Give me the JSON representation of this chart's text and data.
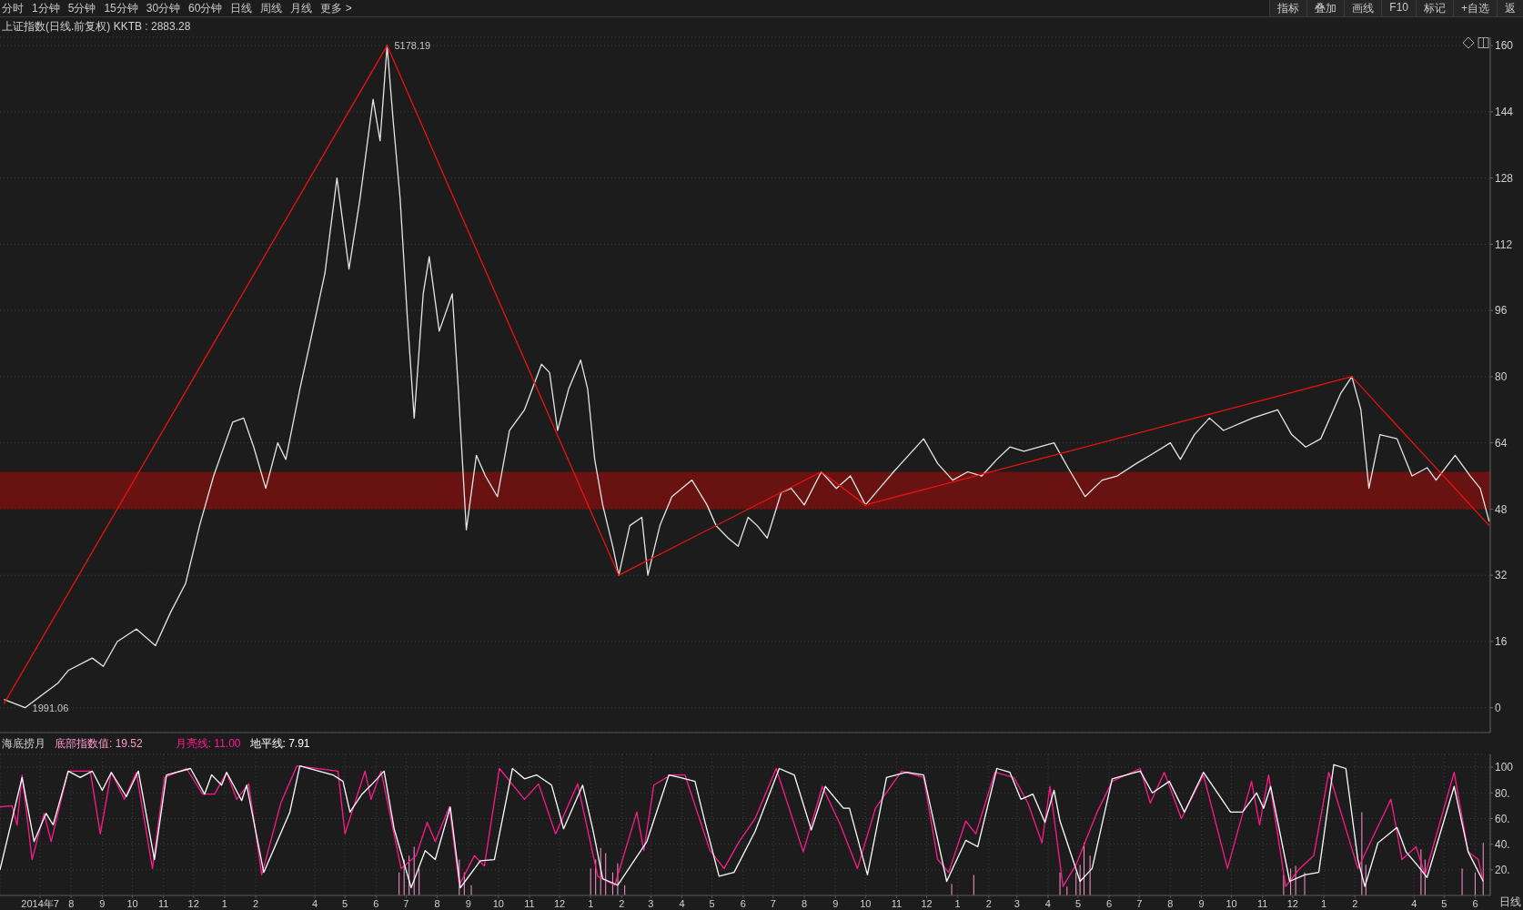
{
  "chart_data": [
    {
      "type": "line",
      "title": "上证指数(日线.前复权) KKTB : 2883.28",
      "annotations": [
        "分时",
        "1分钟",
        "5分钟",
        "15分钟",
        "30分钟",
        "60分钟",
        "日线",
        "周线",
        "月线",
        "更多 >",
        "指标",
        "叠加",
        "画线",
        "F10",
        "标记",
        "+自选",
        "返",
        {
          "text": "5178.19",
          "x": "2015-06-12",
          "y": 160
        },
        {
          "text": "1991.06",
          "x": "2014-06-16",
          "y": 0
        }
      ],
      "xlim": [
        "2014-05-22",
        "2018-06-16"
      ],
      "ylim": [
        -6,
        162
      ],
      "yticks": [
        0,
        16,
        32,
        48,
        64,
        80,
        96,
        112,
        128,
        144,
        160
      ],
      "grid": "y",
      "tick_labels": "y",
      "bands": [
        {
          "axis": "y",
          "from": 48,
          "to": 57,
          "color": "#6e1212"
        }
      ],
      "series": [
        {
          "color": "#e6e6e6",
          "x": [
            "2014-05-26",
            "2014-06-16",
            "2014-07-19",
            "2014-07-29",
            "2014-08-22",
            "2014-09-02",
            "2014-09-16",
            "2014-10-05",
            "2014-10-24",
            "2014-11-08",
            "2014-11-23",
            "2014-12-07",
            "2014-12-21",
            "2015-01-09",
            "2015-01-20",
            "2015-01-30",
            "2015-02-11",
            "2015-02-23",
            "2015-03-03",
            "2015-03-17",
            "2015-03-27",
            "2015-04-11",
            "2015-04-23",
            "2015-05-05",
            "2015-05-16",
            "2015-05-29",
            "2015-06-05",
            "2015-06-12",
            "2015-06-18",
            "2015-06-25",
            "2015-07-02",
            "2015-07-09",
            "2015-07-18",
            "2015-07-24",
            "2015-08-03",
            "2015-08-16",
            "2015-08-22",
            "2015-08-30",
            "2015-09-09",
            "2015-09-18",
            "2015-09-30",
            "2015-10-12",
            "2015-10-27",
            "2015-11-13",
            "2015-11-21",
            "2015-11-29",
            "2015-12-10",
            "2015-12-22",
            "2015-12-29",
            "2016-01-05",
            "2016-01-13",
            "2016-01-23",
            "2016-01-29",
            "2016-02-09",
            "2016-02-21",
            "2016-02-27",
            "2016-03-10",
            "2016-03-22",
            "2016-04-11",
            "2016-04-26",
            "2016-05-05",
            "2016-05-17",
            "2016-05-27",
            "2016-06-06",
            "2016-06-15",
            "2016-06-25",
            "2016-07-09",
            "2016-07-19",
            "2016-08-01",
            "2016-08-18",
            "2016-09-02",
            "2016-09-16",
            "2016-10-01",
            "2016-10-15",
            "2016-10-29",
            "2016-11-28",
            "2016-12-12",
            "2016-12-27",
            "2017-01-11",
            "2017-01-25",
            "2017-02-09",
            "2017-02-22",
            "2017-03-08",
            "2017-04-07",
            "2017-04-21",
            "2017-05-08",
            "2017-05-25",
            "2017-06-09",
            "2017-06-28",
            "2017-07-12",
            "2017-08-01",
            "2017-08-11",
            "2017-08-25",
            "2017-09-09",
            "2017-09-23",
            "2017-10-22",
            "2017-11-16",
            "2017-11-30",
            "2017-12-14",
            "2017-12-29",
            "2018-01-18",
            "2018-01-29",
            "2018-02-07",
            "2018-02-15",
            "2018-02-26",
            "2018-03-15",
            "2018-03-30",
            "2018-04-14",
            "2018-04-23",
            "2018-05-12",
            "2018-05-27",
            "2018-06-06",
            "2018-06-15"
          ],
          "values": [
            2,
            0,
            6,
            9,
            12,
            10,
            16,
            19,
            15,
            23,
            30,
            44,
            56,
            69,
            70,
            63,
            53,
            64,
            60,
            77,
            88,
            105,
            128,
            106,
            123,
            147,
            137,
            160,
            142,
            123,
            95,
            70,
            100,
            109,
            91,
            100,
            77,
            43,
            61,
            56,
            51,
            67,
            72,
            83,
            81,
            67,
            77,
            84,
            77,
            60,
            49,
            39,
            32,
            44,
            46,
            32,
            44,
            51,
            55,
            49,
            44,
            41,
            39,
            46,
            44,
            41,
            52,
            53,
            49,
            57,
            53,
            56,
            49,
            53,
            57,
            65,
            59,
            55,
            57,
            56,
            60,
            63,
            62,
            64,
            58,
            51,
            55,
            56,
            59,
            61,
            64,
            60,
            66,
            70,
            67,
            70,
            72,
            66,
            63,
            65,
            76,
            80,
            72,
            53,
            66,
            65,
            56,
            58,
            55,
            61,
            56,
            53,
            45
          ]
        },
        {
          "color": "#ee1111",
          "x": [
            "2014-05-26",
            "2015-06-12",
            "2016-01-29",
            "2016-08-18",
            "2016-10-01",
            "2018-01-29",
            "2018-06-15"
          ],
          "values": [
            1,
            160,
            32,
            57,
            49,
            80,
            44
          ]
        }
      ]
    },
    {
      "type": "line",
      "title": "海底捞月",
      "legend": "top left",
      "annotations": [
        ": 19.52",
        ": 11.00",
        ": 7.91",
        "日线"
      ],
      "xlim": [
        "2014-05-22",
        "2018-06-16"
      ],
      "xticks": [
        {
          "value": "2014-07-01",
          "label": "2014年7"
        },
        {
          "value": "2014-08-01",
          "label": "8"
        },
        {
          "value": "2014-09-01",
          "label": "9"
        },
        {
          "value": "2014-10-01",
          "label": "10"
        },
        {
          "value": "2014-11-01",
          "label": "11"
        },
        {
          "value": "2014-12-01",
          "label": "12"
        },
        {
          "value": "2015-01-01",
          "label": "1"
        },
        {
          "value": "2015-02-01",
          "label": "2"
        },
        {
          "value": "2015-04-01",
          "label": "4"
        },
        {
          "value": "2015-05-01",
          "label": "5"
        },
        {
          "value": "2015-06-01",
          "label": "6"
        },
        {
          "value": "2015-07-01",
          "label": "7"
        },
        {
          "value": "2015-08-01",
          "label": "8"
        },
        {
          "value": "2015-09-01",
          "label": "9"
        },
        {
          "value": "2015-10-01",
          "label": "10"
        },
        {
          "value": "2015-11-01",
          "label": "11"
        },
        {
          "value": "2015-12-01",
          "label": "12"
        },
        {
          "value": "2016-01-01",
          "label": "1"
        },
        {
          "value": "2016-02-01",
          "label": "2"
        },
        {
          "value": "2016-03-01",
          "label": "3"
        },
        {
          "value": "2016-04-01",
          "label": "4"
        },
        {
          "value": "2016-05-01",
          "label": "5"
        },
        {
          "value": "2016-06-01",
          "label": "6"
        },
        {
          "value": "2016-07-01",
          "label": "7"
        },
        {
          "value": "2016-08-01",
          "label": "8"
        },
        {
          "value": "2016-09-01",
          "label": "9"
        },
        {
          "value": "2016-10-01",
          "label": "10"
        },
        {
          "value": "2016-11-01",
          "label": "11"
        },
        {
          "value": "2016-12-01",
          "label": "12"
        },
        {
          "value": "2017-01-01",
          "label": "1"
        },
        {
          "value": "2017-02-01",
          "label": "2"
        },
        {
          "value": "2017-03-01",
          "label": "3"
        },
        {
          "value": "2017-04-01",
          "label": "4"
        },
        {
          "value": "2017-05-01",
          "label": "5"
        },
        {
          "value": "2017-06-01",
          "label": "6"
        },
        {
          "value": "2017-07-01",
          "label": "7"
        },
        {
          "value": "2017-08-01",
          "label": "8"
        },
        {
          "value": "2017-09-01",
          "label": "9"
        },
        {
          "value": "2017-10-01",
          "label": "10"
        },
        {
          "value": "2017-11-01",
          "label": "11"
        },
        {
          "value": "2017-12-01",
          "label": "12"
        },
        {
          "value": "2018-01-01",
          "label": "1"
        },
        {
          "value": "2018-02-01",
          "label": "2"
        },
        {
          "value": "2018-04-01",
          "label": "4"
        },
        {
          "value": "2018-05-01",
          "label": "5"
        },
        {
          "value": "2018-06-01",
          "label": "6"
        }
      ],
      "ylim": [
        0,
        110
      ],
      "yticks": [
        {
          "value": 20,
          "label": "20."
        },
        {
          "value": 40,
          "label": "40."
        },
        {
          "value": 60,
          "label": "60."
        },
        {
          "value": 80,
          "label": "80."
        },
        {
          "value": 100,
          "label": "100"
        }
      ],
      "grid": true,
      "series": [
        {
          "name": "底部指数值",
          "type": "bar",
          "color": "#ff99cc",
          "x": [
            "2015-06-24",
            "2015-06-29",
            "2015-07-04",
            "2015-07-09",
            "2015-07-14",
            "2015-08-23",
            "2015-08-28",
            "2015-09-04",
            "2016-01-01",
            "2016-01-06",
            "2016-01-11",
            "2016-01-16",
            "2016-01-23",
            "2016-01-28",
            "2016-02-04",
            "2016-12-26",
            "2017-01-17",
            "2017-04-13",
            "2017-04-20",
            "2017-04-29",
            "2017-05-03",
            "2017-05-07",
            "2017-05-13",
            "2017-11-22",
            "2017-11-29",
            "2017-12-04",
            "2017-12-13",
            "2018-02-08",
            "2018-02-12",
            "2018-04-08",
            "2018-04-12",
            "2018-05-19",
            "2018-06-01",
            "2018-06-09"
          ],
          "values": [
            18,
            28,
            31,
            38,
            21,
            28,
            18,
            8,
            21,
            28,
            37,
            33,
            18,
            25,
            8,
            9,
            16,
            18,
            7,
            18,
            24,
            41,
            31,
            16,
            21,
            23,
            18,
            65,
            24,
            36,
            28,
            21,
            18,
            41
          ]
        },
        {
          "name": "月亮线",
          "color": "#ff1a8c",
          "x": [
            "2014-05-22",
            "2014-06-03",
            "2014-06-08",
            "2014-06-13",
            "2014-06-23",
            "2014-07-05",
            "2014-07-12",
            "2014-07-29",
            "2014-08-20",
            "2014-08-30",
            "2014-09-10",
            "2014-09-23",
            "2014-10-05",
            "2014-10-21",
            "2014-11-02",
            "2014-11-24",
            "2014-12-10",
            "2014-12-22",
            "2015-01-03",
            "2015-01-13",
            "2015-01-25",
            "2015-02-07",
            "2015-02-26",
            "2015-03-14",
            "2015-04-24",
            "2015-05-01",
            "2015-05-21",
            "2015-05-27",
            "2015-06-06",
            "2015-06-26",
            "2015-07-11",
            "2015-07-22",
            "2015-07-30",
            "2015-08-13",
            "2015-08-23",
            "2015-09-07",
            "2015-09-17",
            "2015-10-02",
            "2015-10-27",
            "2015-11-10",
            "2015-11-27",
            "2015-12-19",
            "2016-01-08",
            "2016-01-25",
            "2016-02-16",
            "2016-02-23",
            "2016-03-04",
            "2016-03-21",
            "2016-04-04",
            "2016-04-29",
            "2016-05-13",
            "2016-05-28",
            "2016-06-13",
            "2016-07-04",
            "2016-07-31",
            "2016-08-19",
            "2016-09-06",
            "2016-09-23",
            "2016-10-11",
            "2016-11-06",
            "2016-11-28",
            "2016-12-12",
            "2016-12-23",
            "2017-01-09",
            "2017-01-19",
            "2017-02-07",
            "2017-02-26",
            "2017-03-12",
            "2017-03-26",
            "2017-04-03",
            "2017-04-16",
            "2017-04-29",
            "2017-05-20",
            "2017-06-04",
            "2017-07-02",
            "2017-07-12",
            "2017-07-26",
            "2017-08-12",
            "2017-09-03",
            "2017-09-27",
            "2017-10-21",
            "2017-10-29",
            "2017-11-07",
            "2017-11-24",
            "2017-12-08",
            "2017-12-22",
            "2018-01-06",
            "2018-02-04",
            "2018-03-09",
            "2018-03-20",
            "2018-04-03",
            "2018-04-12",
            "2018-05-11",
            "2018-05-25",
            "2018-06-04",
            "2018-06-09"
          ],
          "values": [
            69,
            70,
            55,
            94,
            28,
            64,
            42,
            97,
            97,
            48,
            96,
            75,
            96,
            21,
            92,
            99,
            79,
            79,
            96,
            75,
            87,
            16,
            72,
            101,
            97,
            48,
            97,
            75,
            97,
            21,
            31,
            57,
            42,
            69,
            8,
            31,
            23,
            99,
            75,
            87,
            48,
            87,
            15,
            8,
            65,
            35,
            86,
            94,
            94,
            35,
            21,
            42,
            60,
            99,
            34,
            85,
            55,
            21,
            68,
            97,
            92,
            28,
            18,
            58,
            48,
            96,
            92,
            72,
            41,
            85,
            7,
            24,
            65,
            89,
            99,
            72,
            96,
            60,
            94,
            21,
            89,
            55,
            94,
            7,
            21,
            31,
            96,
            21,
            75,
            28,
            38,
            16,
            96,
            34,
            28,
            11
          ]
        },
        {
          "name": "地平线",
          "color": "#ffffff",
          "x": [
            "2014-05-22",
            "2014-06-13",
            "2014-06-25",
            "2014-07-07",
            "2014-07-14",
            "2014-07-29",
            "2014-08-10",
            "2014-08-22",
            "2014-09-01",
            "2014-09-10",
            "2014-09-25",
            "2014-10-07",
            "2014-10-23",
            "2014-11-04",
            "2014-11-28",
            "2014-12-12",
            "2014-12-19",
            "2014-12-29",
            "2015-01-03",
            "2015-01-18",
            "2015-01-23",
            "2015-02-09",
            "2015-03-07",
            "2015-03-17",
            "2015-04-19",
            "2015-04-29",
            "2015-05-06",
            "2015-05-18",
            "2015-05-27",
            "2015-06-09",
            "2015-06-19",
            "2015-07-06",
            "2015-07-20",
            "2015-07-30",
            "2015-08-14",
            "2015-08-24",
            "2015-09-13",
            "2015-09-27",
            "2015-10-15",
            "2015-10-27",
            "2015-11-08",
            "2015-11-23",
            "2015-12-05",
            "2015-12-24",
            "2016-01-03",
            "2016-01-13",
            "2016-01-28",
            "2016-02-26",
            "2016-03-19",
            "2016-03-30",
            "2016-04-14",
            "2016-04-24",
            "2016-05-08",
            "2016-05-23",
            "2016-06-13",
            "2016-07-07",
            "2016-07-22",
            "2016-08-08",
            "2016-08-22",
            "2016-09-09",
            "2016-09-15",
            "2016-10-03",
            "2016-10-22",
            "2016-11-11",
            "2016-11-28",
            "2016-12-21",
            "2017-01-09",
            "2017-01-21",
            "2017-02-09",
            "2017-02-22",
            "2017-03-05",
            "2017-03-17",
            "2017-03-29",
            "2017-04-07",
            "2017-04-13",
            "2017-05-03",
            "2017-05-15",
            "2017-06-04",
            "2017-07-02",
            "2017-07-14",
            "2017-07-31",
            "2017-08-15",
            "2017-09-03",
            "2017-09-30",
            "2017-10-12",
            "2017-10-26",
            "2017-11-02",
            "2017-11-09",
            "2017-11-28",
            "2017-12-13",
            "2017-12-27",
            "2018-01-11",
            "2018-01-23",
            "2018-02-04",
            "2018-02-11",
            "2018-02-24",
            "2018-03-15",
            "2018-03-24",
            "2018-04-05",
            "2018-04-14",
            "2018-05-11",
            "2018-05-25",
            "2018-06-09"
          ],
          "values": [
            20,
            92,
            42,
            64,
            55,
            97,
            92,
            97,
            82,
            96,
            77,
            97,
            28,
            94,
            99,
            79,
            94,
            86,
            96,
            74,
            86,
            18,
            65,
            101,
            94,
            89,
            65,
            79,
            86,
            97,
            52,
            6,
            35,
            28,
            69,
            6,
            27,
            28,
            99,
            91,
            94,
            86,
            52,
            86,
            52,
            13,
            8,
            42,
            94,
            92,
            89,
            57,
            15,
            18,
            50,
            99,
            94,
            51,
            85,
            68,
            68,
            16,
            92,
            96,
            94,
            11,
            43,
            38,
            99,
            96,
            75,
            79,
            57,
            82,
            58,
            11,
            21,
            91,
            97,
            80,
            89,
            65,
            96,
            65,
            65,
            80,
            68,
            85,
            11,
            16,
            18,
            102,
            99,
            28,
            7,
            41,
            53,
            34,
            23,
            14,
            85,
            34,
            11
          ]
        }
      ]
    }
  ]
}
